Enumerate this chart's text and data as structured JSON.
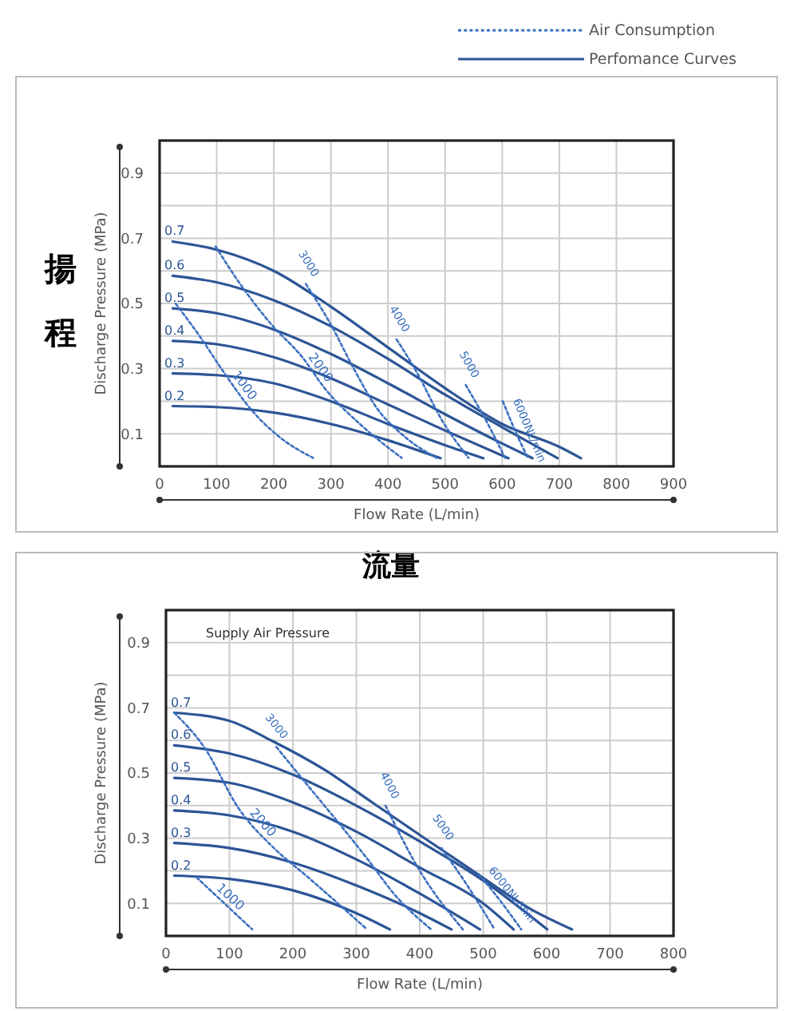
{
  "chart_data": [
    {
      "type": "line",
      "xlabel": "Flow Rate (L/min)",
      "ylabel": "Discharge Pressure (MPa)",
      "xlim": [
        0,
        900
      ],
      "ylim": [
        0,
        1
      ],
      "xticks": [
        0,
        100,
        200,
        300,
        400,
        500,
        600,
        700,
        800,
        900
      ],
      "yticks": [
        {
          "value": 0,
          "label": null
        },
        0.1,
        {
          "value": 0.2,
          "label": null
        },
        0.3,
        {
          "value": 0.4,
          "label": null
        },
        0.5,
        {
          "value": 0.6,
          "label": null
        },
        0.7,
        {
          "value": 0.8,
          "label": null
        },
        0.9,
        {
          "value": 1,
          "label": null
        }
      ],
      "grid": true,
      "marker": "none",
      "annotations": [
        "Air Consumption",
        "Perfomance Curves",
        "揚程",
        "流量"
      ],
      "series": [
        {
          "name": "0.7",
          "color": "#2c5596",
          "line_style": "solid",
          "x": [
            23,
            100,
            200,
            300,
            400,
            500,
            600,
            700,
            738
          ],
          "values": [
            0.69,
            0.665,
            0.6,
            0.49,
            0.365,
            0.24,
            0.13,
            0.06,
            0.025
          ]
        },
        {
          "name": "0.6",
          "color": "#2c5596",
          "line_style": "solid",
          "x": [
            23,
            100,
            200,
            300,
            400,
            500,
            600,
            697
          ],
          "values": [
            0.585,
            0.565,
            0.51,
            0.43,
            0.33,
            0.22,
            0.12,
            0.025
          ]
        },
        {
          "name": "0.5",
          "color": "#2c5596",
          "line_style": "solid",
          "x": [
            23,
            100,
            200,
            300,
            400,
            500,
            600,
            653
          ],
          "values": [
            0.485,
            0.47,
            0.42,
            0.345,
            0.255,
            0.16,
            0.07,
            0.025
          ]
        },
        {
          "name": "0.4",
          "color": "#2c5596",
          "line_style": "solid",
          "x": [
            23,
            100,
            200,
            300,
            400,
            500,
            611
          ],
          "values": [
            0.385,
            0.375,
            0.335,
            0.27,
            0.19,
            0.11,
            0.025
          ]
        },
        {
          "name": "0.3",
          "color": "#2c5596",
          "line_style": "solid",
          "x": [
            23,
            100,
            200,
            300,
            400,
            500,
            567
          ],
          "values": [
            0.285,
            0.28,
            0.255,
            0.2,
            0.13,
            0.065,
            0.025
          ]
        },
        {
          "name": "0.2",
          "color": "#2c5596",
          "line_style": "solid",
          "x": [
            23,
            100,
            200,
            300,
            400,
            492
          ],
          "values": [
            0.185,
            0.182,
            0.165,
            0.13,
            0.08,
            0.025
          ]
        },
        {
          "name": "1000",
          "color": "#3a6fc0",
          "line_style": "dotted",
          "x": [
            28,
            70,
            112,
            160,
            210,
            269
          ],
          "values": [
            0.5,
            0.4,
            0.29,
            0.175,
            0.09,
            0.026
          ]
        },
        {
          "name": "2000",
          "color": "#3a6fc0",
          "line_style": "dotted",
          "x": [
            98,
            145,
            196,
            250,
            289,
            354,
            424
          ],
          "values": [
            0.675,
            0.55,
            0.435,
            0.335,
            0.24,
            0.125,
            0.026
          ]
        },
        {
          "name": "3000",
          "color": "#3a6fc0",
          "line_style": "dotted",
          "x": [
            256,
            300,
            340,
            380,
            430,
            485
          ],
          "values": [
            0.56,
            0.435,
            0.3,
            0.18,
            0.09,
            0.026
          ]
        },
        {
          "name": "4000",
          "color": "#3a6fc0",
          "line_style": "dotted",
          "x": [
            415,
            450,
            495,
            541
          ],
          "values": [
            0.39,
            0.29,
            0.14,
            0.026
          ]
        },
        {
          "name": "5000",
          "color": "#3a6fc0",
          "line_style": "dotted",
          "x": [
            536,
            575,
            605
          ],
          "values": [
            0.25,
            0.13,
            0.026
          ]
        },
        {
          "name": "6000NL/min",
          "color": "#3a6fc0",
          "line_style": "dotted",
          "x": [
            601,
            625,
            645
          ],
          "values": [
            0.2,
            0.1,
            0.026
          ]
        }
      ]
    },
    {
      "type": "line",
      "xlabel": "Flow Rate (L/min)",
      "ylabel": "Discharge Pressure (MPa)",
      "xlim": [
        0,
        800
      ],
      "ylim": [
        0,
        1
      ],
      "xticks": [
        0,
        100,
        200,
        300,
        400,
        500,
        600,
        700,
        800
      ],
      "yticks": [
        {
          "value": 0,
          "label": null
        },
        0.1,
        {
          "value": 0.2,
          "label": null
        },
        0.3,
        {
          "value": 0.4,
          "label": null
        },
        0.5,
        {
          "value": 0.6,
          "label": null
        },
        0.7,
        {
          "value": 0.8,
          "label": null
        },
        0.9,
        {
          "value": 1,
          "label": null
        }
      ],
      "grid": true,
      "marker": "none",
      "annotations": [
        "Supply Air Pressure"
      ],
      "series": [
        {
          "name": "0.7",
          "color": "#2c5596",
          "line_style": "solid",
          "x": [
            13,
            100,
            166,
            250,
            325,
            400,
            476,
            577,
            640
          ],
          "values": [
            0.685,
            0.66,
            0.6,
            0.51,
            0.41,
            0.31,
            0.21,
            0.08,
            0.02
          ]
        },
        {
          "name": "0.6",
          "color": "#2c5596",
          "line_style": "solid",
          "x": [
            13,
            100,
            200,
            300,
            400,
            500,
            601
          ],
          "values": [
            0.585,
            0.56,
            0.495,
            0.4,
            0.29,
            0.17,
            0.02
          ]
        },
        {
          "name": "0.5",
          "color": "#2c5596",
          "line_style": "solid",
          "x": [
            13,
            100,
            200,
            300,
            400,
            500,
            548
          ],
          "values": [
            0.485,
            0.47,
            0.41,
            0.32,
            0.21,
            0.1,
            0.02
          ]
        },
        {
          "name": "0.4",
          "color": "#2c5596",
          "line_style": "solid",
          "x": [
            13,
            100,
            200,
            300,
            400,
            495
          ],
          "values": [
            0.385,
            0.37,
            0.32,
            0.235,
            0.13,
            0.02
          ]
        },
        {
          "name": "0.3",
          "color": "#2c5596",
          "line_style": "solid",
          "x": [
            13,
            100,
            200,
            300,
            400,
            450
          ],
          "values": [
            0.285,
            0.27,
            0.225,
            0.155,
            0.07,
            0.02
          ]
        },
        {
          "name": "0.2",
          "color": "#2c5596",
          "line_style": "solid",
          "x": [
            13,
            100,
            200,
            300,
            353
          ],
          "values": [
            0.185,
            0.175,
            0.14,
            0.07,
            0.02
          ]
        },
        {
          "name": "1000",
          "color": "#3a6fc0",
          "line_style": "dotted",
          "x": [
            48,
            136
          ],
          "values": [
            0.18,
            0.02
          ]
        },
        {
          "name": "2000",
          "color": "#3a6fc0",
          "line_style": "dotted",
          "x": [
            13,
            60,
            115,
            170,
            224,
            317
          ],
          "values": [
            0.685,
            0.58,
            0.39,
            0.27,
            0.18,
            0.02
          ]
        },
        {
          "name": "3000",
          "color": "#3a6fc0",
          "line_style": "dotted",
          "x": [
            174,
            220,
            275,
            320,
            359,
            418
          ],
          "values": [
            0.58,
            0.47,
            0.34,
            0.23,
            0.13,
            0.02
          ]
        },
        {
          "name": "4000",
          "color": "#3a6fc0",
          "line_style": "dotted",
          "x": [
            346,
            400,
            468
          ],
          "values": [
            0.4,
            0.2,
            0.02
          ]
        },
        {
          "name": "5000",
          "color": "#3a6fc0",
          "line_style": "dotted",
          "x": [
            434,
            480,
            518
          ],
          "values": [
            0.27,
            0.14,
            0.02
          ]
        },
        {
          "name": "6000NL/min",
          "color": "#3a6fc0",
          "line_style": "dotted",
          "x": [
            493,
            530,
            560
          ],
          "values": [
            0.19,
            0.1,
            0.02
          ]
        }
      ]
    }
  ]
}
